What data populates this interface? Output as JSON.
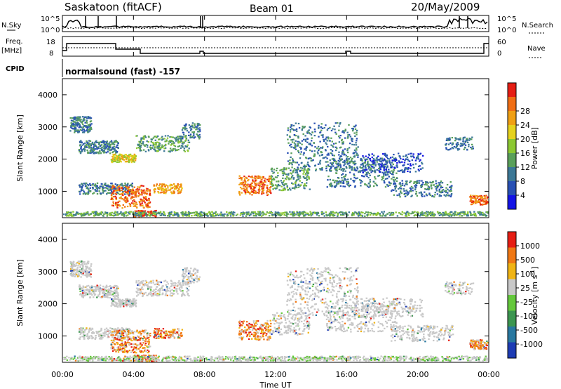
{
  "header": {
    "station": "Saskatoon (fitACF)",
    "beam": "Beam 01",
    "date": "20/May/2009"
  },
  "panels": {
    "noise": {
      "left_label": "N.Sky",
      "right_label": "N.Search",
      "tick_top": "10^5",
      "tick_bottom": "10^0"
    },
    "freq": {
      "left_label_1": "Freq.",
      "left_label_2": "[MHz]",
      "right_label": "Nave",
      "left_ticks": [
        "18",
        "8"
      ],
      "right_ticks": [
        "60",
        "0"
      ]
    },
    "cpid": {
      "label": "CPID",
      "text": "normalsound (fast) -157"
    }
  },
  "chart_data": [
    {
      "type": "heatmap",
      "name": "power",
      "ylabel": "Slant Range [km]",
      "xlabel": "",
      "yticks": [
        "1000",
        "2000",
        "3000",
        "4000"
      ],
      "ylim": [
        180,
        4500
      ],
      "colorbar_label": "Power [dB]",
      "colorbar_ticks": [
        "4",
        "8",
        "12",
        "16",
        "20",
        "24",
        "28"
      ],
      "colors": [
        "#1414e6",
        "#2850b4",
        "#3c7896",
        "#5aa05a",
        "#8cc832",
        "#e6d21e",
        "#f0a014",
        "#f06e14",
        "#e61e14"
      ]
    },
    {
      "type": "heatmap",
      "name": "velocity",
      "ylabel": "Slant Range [km]",
      "xlabel": "Time UT",
      "yticks": [
        "1000",
        "2000",
        "3000",
        "4000"
      ],
      "ylim": [
        180,
        4500
      ],
      "x_tick_labels": [
        "00:00",
        "04:00",
        "08:00",
        "12:00",
        "16:00",
        "20:00",
        "00:00"
      ],
      "colorbar_label": "Velocity [m s^-1]",
      "colorbar_ticks": [
        "1000",
        "500",
        "100",
        "25",
        "-25",
        "-100",
        "-500",
        "-1000"
      ],
      "colors": [
        "#1e3cb4",
        "#2878a0",
        "#3c9650",
        "#64c83c",
        "#c8c8c8",
        "#f0b414",
        "#f07814",
        "#e61e14"
      ]
    }
  ]
}
